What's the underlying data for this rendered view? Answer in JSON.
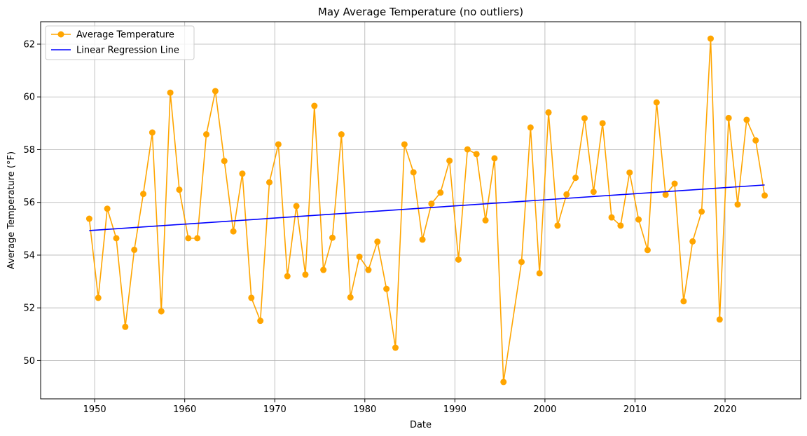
{
  "chart_data": {
    "type": "line",
    "title": "May Average Temperature (no outliers)",
    "xlabel": "Date",
    "ylabel": "Average Temperature (°F)",
    "xlim": [
      1944.0,
      2028.4
    ],
    "ylim": [
      48.55,
      62.85
    ],
    "grid": true,
    "legend_position": "top-left",
    "x_ticks": [
      1950,
      1960,
      1970,
      1980,
      1990,
      2000,
      2010,
      2020
    ],
    "x_tick_labels": [
      "1950",
      "1960",
      "1970",
      "1980",
      "1990",
      "2000",
      "2010",
      "2020"
    ],
    "y_ticks": [
      50,
      52,
      54,
      56,
      58,
      60,
      62
    ],
    "y_tick_labels": [
      "50",
      "52",
      "54",
      "56",
      "58",
      "60",
      "62"
    ],
    "series": [
      {
        "name": "Average Temperature",
        "color": "#ffa500",
        "marker": "circle",
        "x": [
          1949.4,
          1950.4,
          1951.4,
          1952.4,
          1953.4,
          1954.4,
          1955.4,
          1956.4,
          1957.4,
          1958.4,
          1959.4,
          1960.4,
          1961.4,
          1962.4,
          1963.4,
          1964.4,
          1965.4,
          1966.4,
          1967.4,
          1968.4,
          1969.4,
          1970.4,
          1971.4,
          1972.4,
          1973.4,
          1974.4,
          1975.4,
          1976.4,
          1977.4,
          1978.4,
          1979.4,
          1980.4,
          1981.4,
          1982.4,
          1983.4,
          1984.4,
          1985.4,
          1986.4,
          1987.4,
          1988.4,
          1989.4,
          1990.4,
          1991.4,
          1992.4,
          1993.4,
          1994.4,
          1995.4,
          1997.4,
          1998.4,
          1999.4,
          2000.4,
          2001.4,
          2002.4,
          2003.4,
          2004.4,
          2005.4,
          2006.4,
          2007.4,
          2008.4,
          2009.4,
          2010.4,
          2011.4,
          2012.4,
          2013.4,
          2014.4,
          2015.4,
          2016.4,
          2017.4,
          2018.4,
          2019.4,
          2020.4,
          2021.4,
          2022.4,
          2023.4,
          2024.4
        ],
        "y": [
          55.38,
          52.38,
          55.76,
          54.64,
          51.28,
          54.2,
          56.32,
          58.65,
          51.87,
          60.16,
          56.48,
          54.64,
          54.64,
          58.58,
          60.22,
          57.57,
          54.9,
          57.09,
          52.38,
          51.51,
          56.76,
          58.2,
          53.2,
          55.86,
          53.26,
          59.66,
          53.44,
          54.66,
          58.58,
          52.4,
          53.94,
          53.44,
          54.51,
          52.72,
          50.49,
          58.2,
          57.14,
          54.59,
          55.95,
          56.37,
          57.58,
          53.83,
          58.01,
          57.83,
          55.32,
          57.67,
          49.19,
          53.74,
          58.84,
          53.31,
          59.41,
          55.12,
          56.3,
          56.93,
          59.19,
          56.4,
          59.0,
          55.43,
          55.12,
          57.13,
          55.35,
          54.19,
          59.79,
          56.29,
          56.71,
          52.25,
          54.52,
          55.65,
          62.21,
          51.56,
          59.2,
          55.92,
          59.13,
          58.35,
          56.26
        ]
      },
      {
        "name": "Linear Regression Line",
        "color": "#0000ff",
        "marker": "none",
        "x": [
          1949.4,
          2024.4
        ],
        "y": [
          54.93,
          56.66
        ]
      }
    ]
  }
}
